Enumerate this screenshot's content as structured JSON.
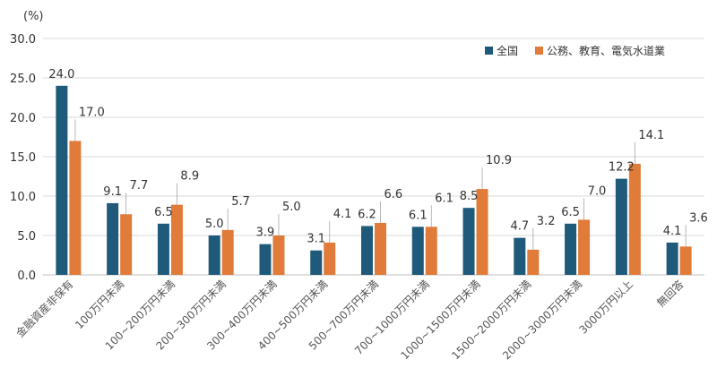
{
  "chart_data": {
    "type": "bar",
    "unit_label": "(%)",
    "categories": [
      "金融資産非保有",
      "100万円未満",
      "100~200万円未満",
      "200~300万円未満",
      "300~400万円未満",
      "400~500万円未満",
      "500~700万円未満",
      "700~1000万円未満",
      "1000~1500万円未満",
      "1500~2000万円未満",
      "2000~3000万円未満",
      "3000万円以上",
      "無回答"
    ],
    "series": [
      {
        "name": "全国",
        "color": "#1f5a7a",
        "values": [
          24.0,
          9.1,
          6.5,
          5.0,
          3.9,
          3.1,
          6.2,
          6.1,
          8.5,
          4.7,
          6.5,
          12.2,
          4.1
        ],
        "labels": [
          "24.0",
          "9.1",
          "6.5",
          "5.0",
          "3.9",
          "3.1",
          "6.2",
          "6.1",
          "8.5",
          "4.7",
          "6.5",
          "12.2",
          "4.1"
        ]
      },
      {
        "name": "公務、教育、電気水道業",
        "color": "#e07b39",
        "values": [
          17.0,
          7.7,
          8.9,
          5.7,
          5.0,
          4.1,
          6.6,
          6.1,
          10.9,
          3.2,
          7.0,
          14.1,
          3.6
        ],
        "labels": [
          "17.0",
          "7.7",
          "8.9",
          "5.7",
          "5.0",
          "4.1",
          "6.6",
          "6.1",
          "10.9",
          "3.2",
          "7.0",
          "14.1",
          "3.6"
        ]
      }
    ],
    "y_ticks": [
      "0.0",
      "5.0",
      "10.0",
      "15.0",
      "20.0",
      "25.0",
      "30.0"
    ],
    "ylim": [
      0,
      30
    ],
    "grid": true,
    "legend_position": "top-right"
  }
}
